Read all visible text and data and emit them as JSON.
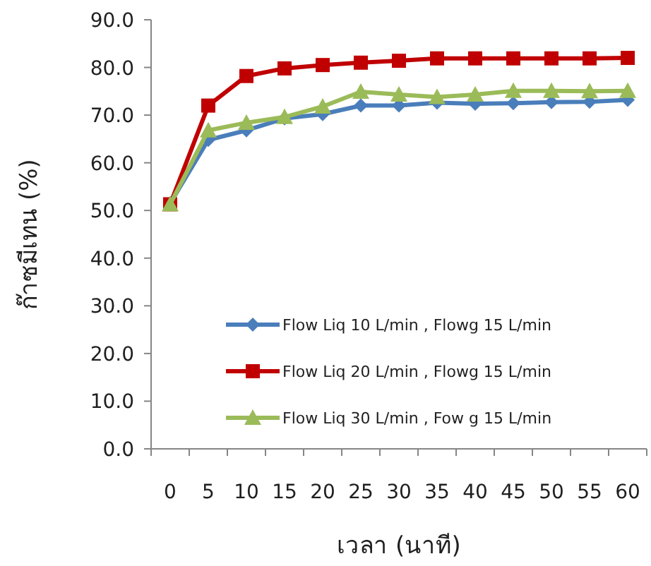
{
  "chart_data": {
    "type": "line",
    "xlabel": "เวลา (นาที)",
    "ylabel": "ก๊าซมีเทน (%)",
    "categories": [
      "0",
      "5",
      "10",
      "15",
      "20",
      "25",
      "30",
      "35",
      "40",
      "45",
      "50",
      "55",
      "60"
    ],
    "ylim": [
      0,
      90
    ],
    "yticks": [
      {
        "value": 0,
        "label": "0.0"
      },
      {
        "value": 10,
        "label": "10.0"
      },
      {
        "value": 20,
        "label": "20.0"
      },
      {
        "value": 30,
        "label": "30.0"
      },
      {
        "value": 40,
        "label": "40.0"
      },
      {
        "value": 50,
        "label": "50.0"
      },
      {
        "value": 60,
        "label": "60.0"
      },
      {
        "value": 70,
        "label": "70.0"
      },
      {
        "value": 80,
        "label": "80.0"
      },
      {
        "value": 90,
        "label": "90.0"
      }
    ],
    "legend": "right",
    "grid": false,
    "series": [
      {
        "name": "Flow Liq 10 L/min , Flowg 15 L/min",
        "color": "#4a7ebb",
        "marker": "diamond",
        "values": [
          51.5,
          64.8,
          66.8,
          69.3,
          70.2,
          72.0,
          72.0,
          72.6,
          72.4,
          72.5,
          72.7,
          72.8,
          73.2
        ]
      },
      {
        "name": "Flow Liq 20 L/min , Flowg 15 L/min",
        "color": "#c00000",
        "marker": "square",
        "values": [
          51.3,
          72.0,
          78.2,
          79.8,
          80.5,
          81.0,
          81.4,
          81.9,
          81.9,
          81.9,
          81.9,
          81.9,
          82.0
        ]
      },
      {
        "name": "Flow Liq 30 L/min , Fow g 15 L/min",
        "color": "#9bbb59",
        "marker": "triangle",
        "values": [
          51.3,
          66.8,
          68.4,
          69.6,
          71.8,
          74.9,
          74.3,
          73.8,
          74.3,
          75.1,
          75.1,
          75.0,
          75.1
        ]
      }
    ]
  }
}
